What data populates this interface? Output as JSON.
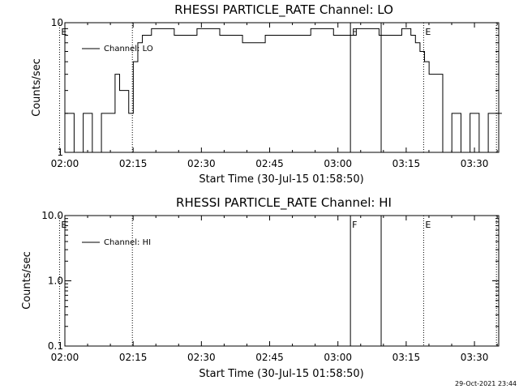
{
  "chart_data": [
    {
      "type": "line",
      "title": "RHESSI PARTICLE_RATE Channel: LO",
      "xlabel": "Start Time (30-Jul-15 01:58:50)",
      "ylabel": "Counts/sec",
      "yscale": "log",
      "ylim": [
        1,
        10
      ],
      "xlim_minutes_after_start": [
        1.17,
        96.5
      ],
      "x_ticks": [
        "02:00",
        "02:15",
        "02:30",
        "02:45",
        "03:00",
        "03:15",
        "03:30"
      ],
      "y_ticks": [
        "1",
        "10"
      ],
      "legend": {
        "entries": [
          "Channel: LO"
        ],
        "placement": "top-left"
      },
      "grid": false,
      "markers": [
        {
          "label": "E",
          "time": "01:58:50",
          "style": "dotted"
        },
        {
          "label": "",
          "time": "02:14:50",
          "style": "dotted"
        },
        {
          "label": "F",
          "time": "03:02:45",
          "style": "solid"
        },
        {
          "label": "",
          "time": "03:09:30",
          "style": "solid"
        },
        {
          "label": "E",
          "time": "03:18:50",
          "style": "dotted"
        },
        {
          "label": "",
          "time": "03:34:50",
          "style": "dotted"
        }
      ],
      "series": [
        {
          "name": "Channel: LO",
          "x_minutes_after_start": [
            1.2,
            3.2,
            5.2,
            7.2,
            9.2,
            11.2,
            12.2,
            13.2,
            14.2,
            15.2,
            16.2,
            17.2,
            18.2,
            20.2,
            25.2,
            30.2,
            35.2,
            40.2,
            45.2,
            50.2,
            55.2,
            60.2,
            65.2,
            70.2,
            75.2,
            77.2,
            78.2,
            79.2,
            80.2,
            81.2,
            82.2,
            84.2,
            86.2,
            88.2,
            90.2,
            92.2,
            94.2,
            96.2
          ],
          "values": [
            2,
            1,
            2,
            1,
            2,
            2,
            4,
            3,
            3,
            2,
            5,
            7,
            8,
            9,
            8,
            9,
            8,
            7,
            8,
            8,
            9,
            8,
            9,
            8,
            9,
            8,
            7,
            6,
            5,
            4,
            4,
            1,
            2,
            1,
            2,
            1,
            2,
            2
          ]
        }
      ]
    },
    {
      "type": "line",
      "title": "RHESSI PARTICLE_RATE Channel: HI",
      "xlabel": "Start Time (30-Jul-15 01:58:50)",
      "ylabel": "Counts/sec",
      "yscale": "log",
      "ylim": [
        0.1,
        10.0
      ],
      "xlim_minutes_after_start": [
        1.17,
        96.5
      ],
      "x_ticks": [
        "02:00",
        "02:15",
        "02:30",
        "02:45",
        "03:00",
        "03:15",
        "03:30"
      ],
      "y_ticks": [
        "0.1",
        "1.0",
        "10.0"
      ],
      "legend": {
        "entries": [
          "Channel: HI"
        ],
        "placement": "top-left"
      },
      "grid": false,
      "markers": [
        {
          "label": "E",
          "time": "01:58:50",
          "style": "dotted"
        },
        {
          "label": "",
          "time": "02:14:50",
          "style": "dotted"
        },
        {
          "label": "F",
          "time": "03:02:45",
          "style": "solid"
        },
        {
          "label": "",
          "time": "03:09:30",
          "style": "solid"
        },
        {
          "label": "E",
          "time": "03:18:50",
          "style": "dotted"
        },
        {
          "label": "",
          "time": "03:34:50",
          "style": "dotted"
        }
      ],
      "series": [
        {
          "name": "Channel: HI",
          "x_minutes_after_start": [],
          "values": []
        }
      ]
    }
  ],
  "footer": {
    "generated": "29-Oct-2021 23:44"
  }
}
